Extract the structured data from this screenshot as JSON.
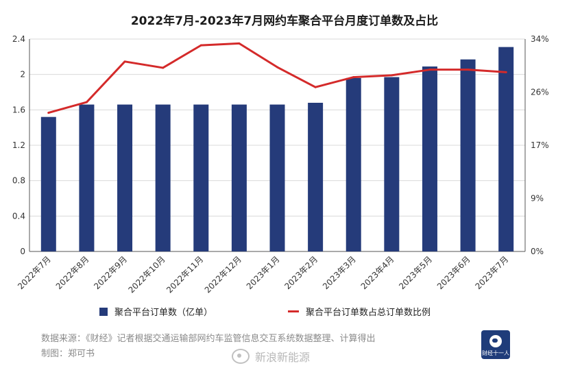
{
  "chart_data": {
    "type": "bar",
    "title": "2022年7月-2023年7月网约车聚合平台月度订单数及占比",
    "categories": [
      "2022年7月",
      "2022年8月",
      "2022年9月",
      "2022年10月",
      "2022年11月",
      "2022年12月",
      "2023年1月",
      "2023年2月",
      "2023年3月",
      "2023年4月",
      "2023年5月",
      "2023年6月",
      "2023年7月"
    ],
    "y_left": {
      "range": [
        0,
        2.4
      ],
      "ticks": [
        "0",
        "0.4",
        "0.8",
        "1.2",
        "1.6",
        "2",
        "2.4"
      ]
    },
    "y_right": {
      "range": [
        0,
        34
      ],
      "ticks": [
        "0%",
        "9%",
        "17%",
        "26%",
        "34%"
      ]
    },
    "series": [
      {
        "name": "聚合平台订单数（亿单）",
        "type": "bar",
        "axis": "left",
        "color": "#253b7a",
        "values": [
          1.52,
          1.66,
          1.66,
          1.66,
          1.66,
          1.66,
          1.66,
          1.68,
          1.96,
          1.97,
          2.09,
          2.17,
          2.31
        ]
      },
      {
        "name": "聚合平台订单数占总订单数比例",
        "type": "line",
        "axis": "right",
        "color": "#d42a2a",
        "values": [
          22.2,
          23.9,
          30.4,
          29.4,
          33.0,
          33.3,
          29.5,
          26.3,
          27.9,
          28.2,
          29.1,
          29.1,
          28.7
        ]
      }
    ],
    "grid": "horizontal",
    "legend_position": "bottom"
  },
  "footer": {
    "source": "数据来源：《财经》记者根据交通运输部网约车监管信息交互系统数据整理、计算得出",
    "author": "制图：郑可书",
    "watermark": "新浪新能源",
    "logo_text": "财经十一人"
  }
}
